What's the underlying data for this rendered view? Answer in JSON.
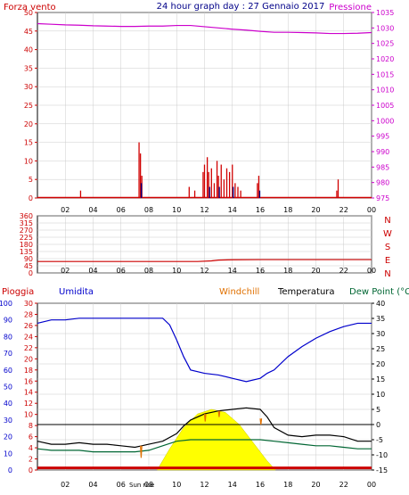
{
  "title": "24 hour graph day : 27 Gennaio 2017",
  "colors": {
    "wind": "#d00000",
    "gust": "#000088",
    "pressure": "#cc00cc",
    "direction": "#cc0000",
    "humidity": "#0000cc",
    "temperature": "#000000",
    "windchill": "#e07000",
    "dewpoint": "#006633",
    "solar": "#ffff00",
    "rain": "#cc0000",
    "grid": "#cccccc",
    "axis_left": "#cc0000",
    "axis_right": "#cc00cc"
  },
  "chart_data": [
    {
      "type": "bar",
      "name": "wind-pressure",
      "labels": {
        "left": "Forza vento",
        "right": "Pressione"
      },
      "x_ticks": [
        "02",
        "04",
        "06",
        "08",
        "10",
        "12",
        "14",
        "16",
        "18",
        "20",
        "22",
        "00"
      ],
      "wind_axis": {
        "ylim": [
          0,
          50
        ],
        "ticks": [
          0,
          5,
          10,
          15,
          20,
          25,
          30,
          35,
          40,
          45,
          50
        ]
      },
      "pressure_axis": {
        "ylim": [
          975,
          1035
        ],
        "ticks": [
          975,
          980,
          985,
          990,
          995,
          1000,
          1005,
          1010,
          1015,
          1020,
          1025,
          1030,
          1035
        ]
      },
      "wind_speed": {
        "x": [
          3.1,
          7.3,
          7.4,
          7.5,
          10.9,
          11.3,
          11.9,
          12.0,
          12.2,
          12.3,
          12.5,
          12.7,
          12.9,
          13.0,
          13.2,
          13.4,
          13.6,
          13.8,
          14.0,
          14.2,
          14.4,
          14.6,
          15.8,
          15.9,
          21.5,
          21.6
        ],
        "y": [
          2,
          15,
          12,
          6,
          3,
          2,
          7,
          9,
          11,
          7,
          8,
          4,
          10,
          6,
          9,
          5,
          8,
          7,
          9,
          4,
          3,
          2,
          4,
          6,
          2,
          5
        ]
      },
      "wind_gust": {
        "x": [
          7.4,
          12.3,
          13.0,
          14.0,
          15.9
        ],
        "y": [
          4,
          3,
          3,
          3,
          2
        ]
      },
      "pressure": {
        "x": [
          0,
          1,
          2,
          3,
          4,
          5,
          6,
          7,
          8,
          9,
          10,
          11,
          12,
          13,
          14,
          15,
          16,
          17,
          18,
          19,
          20,
          21,
          22,
          23,
          24
        ],
        "y": [
          1031.4,
          1031.2,
          1031.0,
          1030.9,
          1030.7,
          1030.6,
          1030.5,
          1030.5,
          1030.6,
          1030.6,
          1030.8,
          1030.8,
          1030.4,
          1030.0,
          1029.6,
          1029.3,
          1028.9,
          1028.6,
          1028.6,
          1028.5,
          1028.4,
          1028.2,
          1028.2,
          1028.3,
          1028.5
        ]
      }
    },
    {
      "type": "line",
      "name": "wind-direction",
      "ylim": [
        0,
        360
      ],
      "y_ticks": [
        0,
        45,
        90,
        135,
        180,
        225,
        270,
        315,
        360
      ],
      "y_tick_labels": [
        "0",
        "45",
        "90",
        "135",
        "180",
        "225",
        "270",
        "315",
        "360"
      ],
      "compass": [
        "N",
        "W",
        "S",
        "E",
        "N"
      ],
      "x": [
        0,
        2,
        4,
        6,
        8,
        10,
        11.5,
        12.5,
        13.0,
        14,
        16,
        18,
        20,
        22,
        24
      ],
      "y": [
        72,
        72,
        72,
        72,
        72,
        72,
        72,
        76,
        81,
        83,
        84,
        84,
        84,
        84,
        84
      ]
    },
    {
      "type": "line",
      "name": "temperature-humidity",
      "labels": {
        "rain": "Pioggia",
        "humidity": "Umidita",
        "windchill": "Windchill",
        "temperature": "Temperatura",
        "dewpoint": "Dew Point (°C",
        "sunrise": "Sun rise"
      },
      "humidity_axis": {
        "ylim": [
          0,
          100
        ],
        "ticks": [
          0,
          10,
          20,
          30,
          40,
          50,
          60,
          70,
          80,
          90,
          100
        ]
      },
      "rain_axis": {
        "ylim": [
          0,
          30
        ],
        "ticks": [
          0,
          2,
          4,
          6,
          8,
          10,
          12,
          14,
          16,
          18,
          20,
          22,
          24,
          26,
          28,
          30
        ]
      },
      "temperature_axis": {
        "ylim": [
          -15,
          40
        ],
        "ticks": [
          -15,
          -10,
          -5,
          0,
          5,
          10,
          15,
          20,
          25,
          30,
          35,
          40
        ]
      },
      "zero_line": 0,
      "humidity": {
        "x": [
          0,
          1,
          2,
          3,
          4,
          5,
          6,
          7,
          8,
          9,
          9.5,
          10,
          10.5,
          11,
          12,
          13,
          14,
          15,
          16,
          16.5,
          17,
          18,
          19,
          20,
          21,
          22,
          23,
          24
        ],
        "y": [
          88,
          90,
          90,
          91,
          91,
          91,
          91,
          91,
          91,
          91,
          87,
          78,
          68,
          60,
          58,
          57,
          55,
          53,
          55,
          58,
          60,
          68,
          74,
          79,
          83,
          86,
          88,
          88
        ]
      },
      "temperature": {
        "x": [
          0,
          1,
          2,
          3,
          4,
          5,
          6,
          7,
          7.5,
          8,
          9,
          10,
          10.5,
          11,
          12,
          13,
          14,
          15,
          16,
          16.5,
          17,
          18,
          19,
          20,
          21,
          22,
          23,
          24
        ],
        "y": [
          -5.5,
          -6.5,
          -6.5,
          -6,
          -6.5,
          -6.5,
          -7,
          -7.5,
          -7,
          -6.5,
          -5.5,
          -3,
          -0.5,
          1.5,
          3.5,
          4.5,
          5,
          5.5,
          5,
          2.5,
          -1,
          -3.5,
          -4,
          -3.5,
          -3.5,
          -4,
          -5.5,
          -5.5
        ]
      },
      "windchill": {
        "x": [
          7.4,
          7.45,
          7.5,
          12.0,
          12.05,
          12.1,
          13.0,
          13.05,
          13.1,
          16.0,
          16.05,
          16.1
        ],
        "y": [
          -7,
          -11,
          -7,
          3.5,
          1,
          3.5,
          4.5,
          2.5,
          4.5,
          2,
          0,
          2
        ]
      },
      "dewpoint": {
        "x": [
          0,
          1,
          2,
          3,
          4,
          5,
          6,
          7,
          8,
          9,
          10,
          11,
          12,
          13,
          14,
          15,
          16,
          17,
          18,
          19,
          20,
          21,
          22,
          23,
          24
        ],
        "y": [
          -8,
          -8.5,
          -8.5,
          -8.5,
          -9,
          -9,
          -9,
          -9,
          -8.5,
          -7,
          -5.5,
          -5,
          -5,
          -5,
          -5,
          -5,
          -5,
          -5.5,
          -6,
          -6.5,
          -7,
          -7,
          -7.5,
          -8,
          -8
        ]
      },
      "solar": {
        "x": [
          8.6,
          9.5,
          10.5,
          11.5,
          12.5,
          13.5,
          14.5,
          15.5,
          16.5,
          17.1
        ],
        "y": [
          0,
          7,
          14,
          18.5,
          20,
          19,
          15,
          9,
          3,
          0
        ]
      },
      "rain": {
        "x": [
          0,
          24
        ],
        "y": [
          0.3,
          0.3
        ]
      }
    }
  ]
}
